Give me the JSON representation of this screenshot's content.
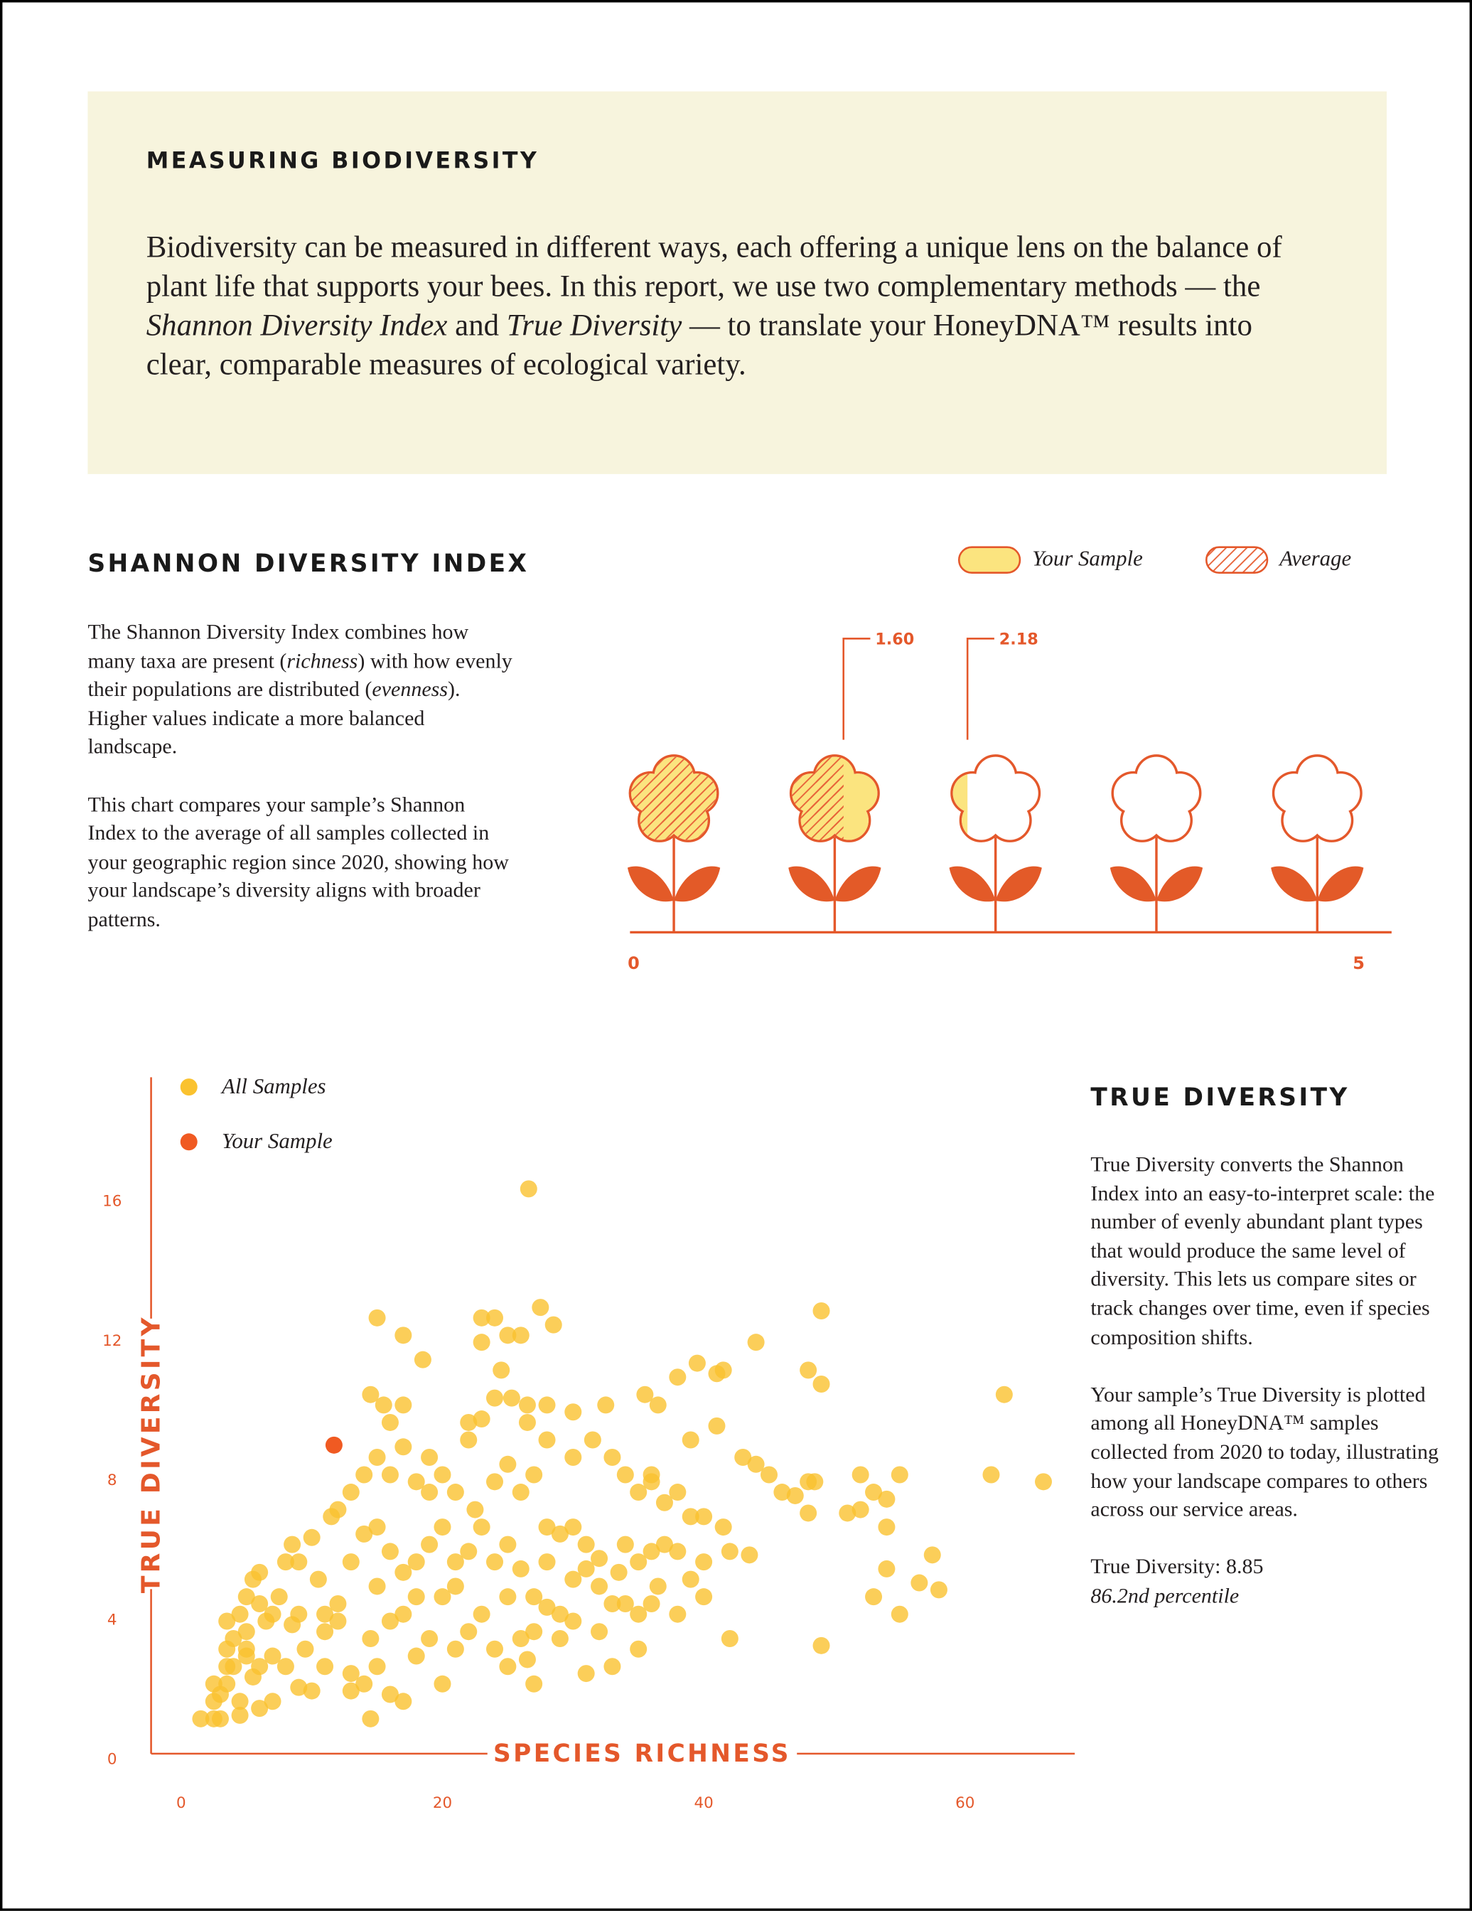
{
  "intro": {
    "title": "MEASURING BIODIVERSITY",
    "body": [
      "Biodiversity can be measured in different ways, each offering a unique lens on the balance of plant life that supports your bees. In this report, we use two complementary methods — the ",
      "Shannon Diversity Index",
      " and ",
      "True Diversity",
      " — to translate your HoneyDNA™ results into clear, comparable measures of ecological variety."
    ]
  },
  "shannon": {
    "title": "SHANNON DIVERSITY INDEX",
    "paragraph_1": [
      "The Shannon Diversity Index combines how many taxa are present (",
      "richness",
      ") with how evenly their populations are distributed (",
      "evenness",
      "). Higher values indicate a more balanced landscape."
    ],
    "paragraph_2": "This chart compares your sample’s Shannon Index to the average of all samples collected in your geographic region since 2020, showing how your landscape’s diversity aligns with broader patterns."
  },
  "true_diversity": {
    "title": "TRUE DIVERSITY",
    "paragraph_1": "True Diversity converts the Shannon Index into an easy-to-interpret scale: the number of evenly abundant plant types that would produce the same level of diversity. This lets us compare sites or track changes over time, even if species composition shifts.",
    "paragraph_2": "Your sample’s True Diversity is plotted among all HoneyDNA™ samples collected from 2020 to today, illustrating how your landscape compares to others across our service areas.",
    "result": "True Diversity: 8.85",
    "percentile": "86.2nd percentile"
  },
  "chart_data": [
    {
      "type": "flower",
      "xlim": [
        0,
        5
      ],
      "xticks": [
        0,
        5
      ],
      "series": [
        {
          "name": "Your Sample",
          "color": "#fbe47f",
          "values": [
            2.18
          ],
          "value_labels": [
            "2.18"
          ]
        },
        {
          "name": "Average",
          "color": "#e8643a",
          "pattern": "hatch",
          "values": [
            1.6
          ],
          "value_labels": [
            "1.60"
          ]
        }
      ]
    },
    {
      "type": "scatter",
      "xlabel": "SPECIES RICHNESS",
      "ylabel": "TRUE DIVERSITY",
      "xlim": [
        -2.3,
        68.4
      ],
      "ylim": [
        0,
        19.4
      ],
      "xticks": [
        0,
        20,
        40,
        60
      ],
      "yticks": [
        0,
        4,
        8,
        12,
        16
      ],
      "series": [
        {
          "name": "All Samples",
          "color": "#fac22f",
          "x": [
            1.5,
            2.5,
            3,
            4.5,
            2.5,
            3,
            2.5,
            3.5,
            3.5,
            4,
            3.5,
            4,
            5,
            4.5,
            5,
            5.5,
            6,
            5,
            5.5,
            4.5,
            3.5,
            6.5,
            7,
            6,
            7.5,
            8,
            9,
            8.5,
            10,
            10.5,
            9,
            8.5,
            9.5,
            11,
            12,
            11,
            12,
            8,
            5,
            6,
            7,
            13,
            14,
            15,
            16,
            14.5,
            16,
            17,
            15,
            13,
            14,
            15,
            16,
            17,
            18,
            18,
            19,
            12,
            13,
            11.5,
            14,
            15,
            16,
            17,
            18,
            19,
            16,
            15.5,
            17,
            14.5,
            15,
            17,
            18.5,
            20,
            21,
            22,
            19,
            20,
            21,
            20,
            19,
            18,
            20,
            21,
            22,
            14.5,
            17,
            10,
            11,
            9,
            7,
            6,
            13,
            22,
            23,
            22.5,
            23,
            24,
            25,
            23,
            24,
            26,
            25,
            27,
            26.5,
            25,
            24,
            26,
            27,
            28,
            26.5,
            26.5,
            28,
            24,
            25.3,
            23,
            24,
            25,
            26,
            23,
            27.5,
            28.5,
            26.6,
            24.5,
            30,
            31.5,
            32.5,
            33,
            34,
            35,
            36,
            34,
            35,
            36,
            31,
            30,
            29,
            28,
            28,
            27,
            29,
            30,
            31,
            32,
            33,
            34,
            35,
            36,
            30,
            29,
            31,
            33,
            35,
            27,
            28,
            32,
            33.5,
            32,
            30,
            26,
            25,
            22,
            21,
            36.5,
            38,
            39.5,
            41.5,
            43,
            44,
            45,
            46,
            47,
            48.5,
            37,
            38,
            39,
            40,
            41.5,
            37,
            38,
            40,
            39,
            40,
            38,
            36.5,
            42,
            43.5,
            42,
            49,
            44,
            48,
            49,
            49,
            48,
            52,
            53,
            54,
            55,
            48,
            51,
            52,
            54,
            53,
            54,
            55,
            56.5,
            57.5,
            58,
            62,
            63,
            66,
            41,
            41,
            39,
            35.5,
            36
          ],
          "values": [
            1.0,
            1.0,
            1.0,
            1.1,
            1.5,
            1.7,
            2.0,
            2.0,
            2.5,
            2.5,
            3.0,
            3.3,
            3.5,
            4.0,
            4.5,
            5.0,
            5.2,
            2.8,
            2.2,
            1.5,
            3.8,
            3.8,
            4.0,
            4.3,
            4.5,
            5.5,
            5.5,
            6.0,
            6.2,
            5.0,
            4.0,
            3.7,
            3.0,
            4.0,
            4.3,
            3.5,
            3.8,
            2.5,
            3.0,
            2.5,
            2.8,
            2.3,
            2.0,
            2.5,
            1.7,
            3.3,
            3.8,
            4.0,
            4.8,
            5.5,
            6.3,
            6.5,
            5.8,
            5.2,
            5.5,
            4.5,
            6.0,
            7.0,
            7.5,
            6.8,
            8.0,
            8.5,
            8.0,
            8.8,
            7.8,
            7.5,
            9.5,
            10.0,
            10.0,
            10.3,
            12.5,
            12.0,
            11.3,
            8.0,
            7.5,
            9.0,
            8.5,
            6.5,
            5.5,
            4.5,
            3.3,
            2.8,
            2.0,
            3.0,
            3.5,
            1.0,
            1.5,
            1.8,
            2.5,
            1.9,
            1.5,
            1.3,
            1.8,
            9.5,
            9.6,
            7.0,
            6.5,
            5.5,
            4.5,
            4.0,
            3.0,
            3.3,
            2.5,
            2.0,
            2.7,
            8.3,
            7.8,
            7.5,
            8.0,
            9.0,
            9.5,
            10.0,
            10.0,
            10.2,
            10.2,
            12.5,
            12.5,
            12.0,
            12.0,
            11.8,
            12.8,
            12.3,
            16.2,
            11.0,
            8.5,
            9.0,
            10.0,
            8.5,
            8.0,
            7.5,
            8.0,
            6.0,
            5.5,
            5.8,
            6.0,
            6.5,
            6.3,
            6.5,
            5.5,
            4.5,
            4.0,
            5.0,
            5.3,
            4.8,
            4.3,
            4.3,
            4.0,
            4.3,
            3.8,
            3.3,
            2.3,
            2.5,
            3.0,
            3.5,
            4.2,
            3.5,
            5.2,
            5.6,
            9.8,
            5.3,
            6.0,
            5.8,
            4.8,
            10.0,
            10.8,
            11.2,
            11.0,
            8.5,
            8.3,
            8.0,
            7.5,
            7.4,
            7.8,
            7.2,
            7.5,
            6.8,
            6.8,
            6.5,
            6.0,
            5.8,
            5.5,
            5.0,
            4.5,
            4.0,
            4.8,
            5.8,
            5.7,
            3.3,
            3.1,
            11.8,
            11.0,
            10.6,
            12.7,
            7.8,
            8.0,
            7.5,
            7.3,
            8.0,
            6.9,
            6.9,
            7.0,
            6.5,
            4.5,
            5.3,
            4.0,
            4.9,
            5.7,
            4.7,
            8.0,
            10.3,
            7.8,
            9.4,
            10.9,
            9.0,
            10.3,
            7.8
          ]
        },
        {
          "name": "Your Sample",
          "color": "#f05a22",
          "x": [
            11.7
          ],
          "values": [
            8.85
          ]
        }
      ]
    }
  ]
}
